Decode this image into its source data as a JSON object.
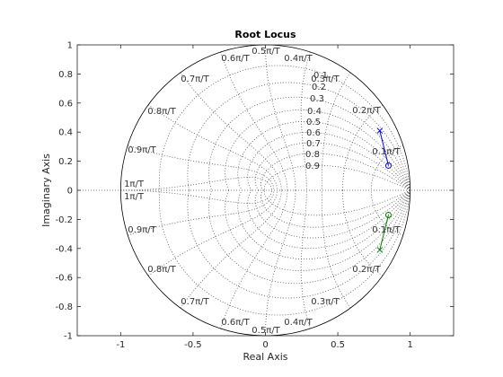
{
  "chart_data": {
    "type": "scatter",
    "title": "Root Locus",
    "xlabel": "Real Axis",
    "ylabel": "Imaginary Axis",
    "xlim": [
      -1.3,
      1.3
    ],
    "ylim": [
      -1,
      1
    ],
    "xticks": [
      "-1",
      "-0.5",
      "0",
      "0.5",
      "1"
    ],
    "yticks": [
      "1",
      "0.8",
      "0.6",
      "0.4",
      "0.2",
      "0",
      "-0.2",
      "-0.4",
      "-0.6",
      "-0.8",
      "-1"
    ],
    "unit_circle": true,
    "grid": true,
    "zeta_values": [
      0.1,
      0.2,
      0.3,
      0.4,
      0.5,
      0.6,
      0.7,
      0.8,
      0.9
    ],
    "zeta_labels": [
      "0.1",
      "0.2",
      "0.3",
      "0.4",
      "0.5",
      "0.6",
      "0.7",
      "0.8",
      "0.9"
    ],
    "wn_labels_upper": [
      "0.5π/T",
      "0.4π/T",
      "0.6π/T",
      "0.3π/T",
      "0.7π/T",
      "0.2π/T",
      "0.8π/T",
      "0.1π/T",
      "0.9π/T",
      "1π/T"
    ],
    "wn_labels_lower": [
      "1π/T",
      "0.9π/T",
      "0.1π/T",
      "0.8π/T",
      "0.2π/T",
      "0.7π/T",
      "0.3π/T",
      "0.6π/T",
      "0.4π/T",
      "0.5π/T"
    ],
    "series": [
      {
        "color": "#0000ff",
        "x": [
          0.79,
          0.81,
          0.83,
          0.85
        ],
        "y": [
          0.41,
          0.33,
          0.25,
          0.17
        ],
        "poles": [
          {
            "x": 0.79,
            "y": 0.41
          }
        ],
        "zeros": [
          {
            "x": 0.85,
            "y": 0.17
          }
        ]
      },
      {
        "color": "#008000",
        "x": [
          0.79,
          0.81,
          0.83,
          0.85
        ],
        "y": [
          -0.41,
          -0.33,
          -0.25,
          -0.17
        ],
        "poles": [
          {
            "x": 0.79,
            "y": -0.41
          }
        ],
        "zeros": [
          {
            "x": 0.85,
            "y": -0.17
          }
        ]
      }
    ]
  }
}
